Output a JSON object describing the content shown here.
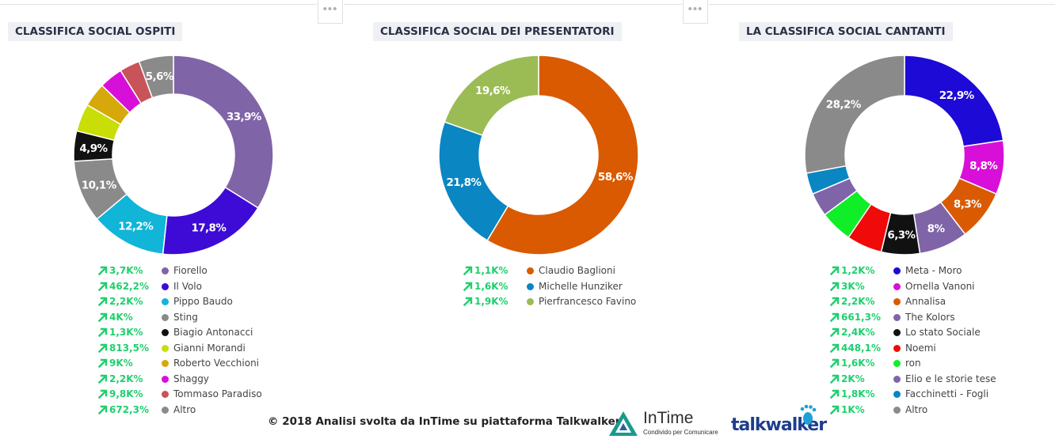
{
  "chart_data": [
    {
      "type": "pie",
      "title": "CLASSIFICA SOCIAL OSPITI",
      "legend_position": "bottom",
      "slices": [
        {
          "name": "Fiorello",
          "value": 33.9,
          "label": "33,9%",
          "trend": "3,7K%",
          "color": "#8064a8"
        },
        {
          "name": "Il Volo",
          "value": 17.8,
          "label": "17,8%",
          "trend": "462,2%",
          "color": "#3d0ad6"
        },
        {
          "name": "Pippo Baudo",
          "value": 12.2,
          "label": "12,2%",
          "trend": "2,2K%",
          "color": "#10b5d8"
        },
        {
          "name": "Sting",
          "value": 10.1,
          "label": "10,1%",
          "trend": "4K%",
          "color": "#8a8a8a"
        },
        {
          "name": "Biagio Antonacci",
          "value": 4.9,
          "label": "4,9%",
          "trend": "1,3K%",
          "color": "#111111"
        },
        {
          "name": "Gianni Morandi",
          "value": 4.5,
          "label": "",
          "trend": "813,5%",
          "color": "#c9de06"
        },
        {
          "name": "Roberto Vecchioni",
          "value": 3.9,
          "label": "",
          "trend": "9K%",
          "color": "#d6a80a"
        },
        {
          "name": "Shaggy",
          "value": 3.8,
          "label": "",
          "trend": "2,2K%",
          "color": "#d80fd8"
        },
        {
          "name": "Tommaso Paradiso",
          "value": 3.3,
          "label": "",
          "trend": "9,8K%",
          "color": "#c8545a"
        },
        {
          "name": "Altro",
          "value": 5.6,
          "label": "5,6%",
          "trend": "672,3%",
          "color": "#8a8a8a"
        }
      ]
    },
    {
      "type": "pie",
      "title": "CLASSIFICA SOCIAL DEI PRESENTATORI",
      "legend_position": "bottom",
      "slices": [
        {
          "name": "Claudio Baglioni",
          "value": 58.6,
          "label": "58,6%",
          "trend": "1,1K%",
          "color": "#d95a00"
        },
        {
          "name": "Michelle Hunziker",
          "value": 21.8,
          "label": "21,8%",
          "trend": "1,6K%",
          "color": "#0a86c2"
        },
        {
          "name": "Pierfrancesco Favino",
          "value": 19.6,
          "label": "19,6%",
          "trend": "1,9K%",
          "color": "#9bbc55"
        }
      ]
    },
    {
      "type": "pie",
      "title": "LA CLASSIFICA SOCIAL CANTANTI",
      "legend_position": "bottom",
      "slices": [
        {
          "name": "Meta - Moro",
          "value": 22.9,
          "label": "22,9%",
          "trend": "1,2K%",
          "color": "#1e0ad6"
        },
        {
          "name": "Ornella Vanoni",
          "value": 8.8,
          "label": "8,8%",
          "trend": "3K%",
          "color": "#d80fd8"
        },
        {
          "name": "Annalisa",
          "value": 8.3,
          "label": "8,3%",
          "trend": "2,2K%",
          "color": "#d95a00"
        },
        {
          "name": "The Kolors",
          "value": 8.0,
          "label": "8%",
          "trend": "661,3%",
          "color": "#8064a8"
        },
        {
          "name": "Lo stato Sociale",
          "value": 6.3,
          "label": "6,3%",
          "trend": "2,4K%",
          "color": "#111111"
        },
        {
          "name": "Noemi",
          "value": 5.8,
          "label": "",
          "trend": "448,1%",
          "color": "#f00a0a"
        },
        {
          "name": "ron",
          "value": 5.3,
          "label": "",
          "trend": "1,6K%",
          "color": "#10ee28"
        },
        {
          "name": "Elio e le storie tese",
          "value": 3.9,
          "label": "",
          "trend": "2K%",
          "color": "#8064a8"
        },
        {
          "name": "Facchinetti - Fogli",
          "value": 3.5,
          "label": "",
          "trend": "1,8K%",
          "color": "#0a86c2"
        },
        {
          "name": "Altro",
          "value": 28.2,
          "label": "28,2%",
          "trend": "1K%",
          "color": "#8a8a8a"
        }
      ]
    }
  ],
  "footer": {
    "copyright": "© 2018  Analisi svolta da InTime su piattaforma Talkwalker"
  },
  "logos": {
    "intime_name": "InTime",
    "intime_tagline": "Condivido per Comunicare",
    "talkwalker_name": "talkwalker"
  },
  "colors": {
    "trend_green": "#1fcf6e",
    "title_bg": "#eef0f4",
    "title_text": "#2a2f45"
  },
  "icons": {
    "more_menu": "more-horizontal-icon",
    "trend": "trend-up-arrow-icon"
  },
  "more_tab_glyph": "•••"
}
